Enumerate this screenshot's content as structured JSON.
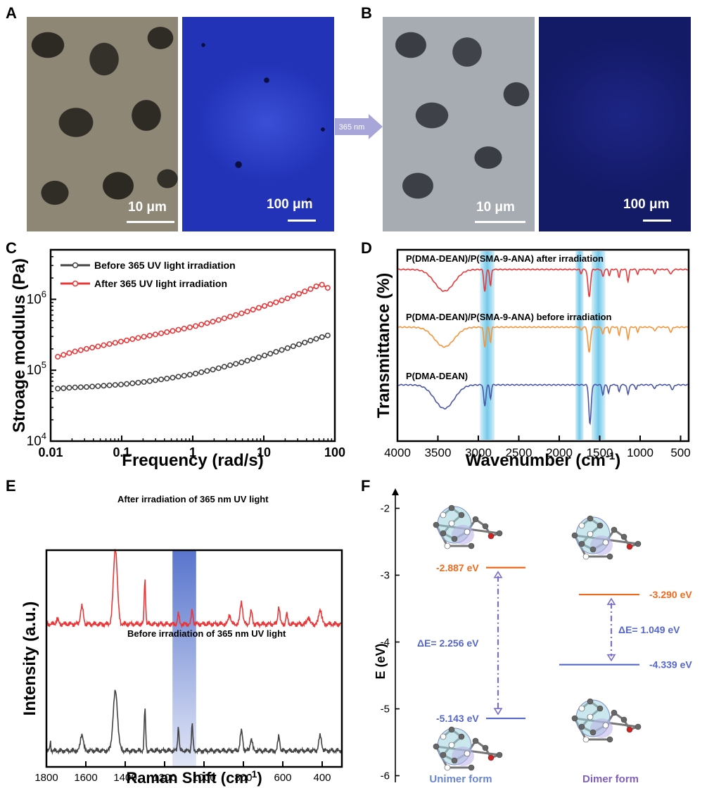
{
  "panel_labels": {
    "a": "A",
    "b": "B",
    "c": "C",
    "d": "D",
    "e": "E",
    "f": "F"
  },
  "colors": {
    "red": "#e8383a",
    "black": "#444444",
    "orange": "#f5943a",
    "navy": "#4a56a6",
    "highlight": "#5bc0e6",
    "energy_orange": "#f06a1e",
    "energy_blue": "#5566cc",
    "arrow_purple": "#7a6fc8"
  },
  "micrographs": {
    "a_sem_scale": "10 μm",
    "a_fluor_scale": "100 μm",
    "b_sem_scale": "10 μm",
    "b_fluor_scale": "100 μm",
    "arrow_label": "365 nm"
  },
  "chart_c": {
    "type": "scatter-line",
    "xlabel": "Frequency (rad/s)",
    "ylabel": "Stroage modulus (Pa)",
    "x_scale": "log",
    "y_scale": "log",
    "xlim": [
      0.01,
      100
    ],
    "ylim": [
      10000,
      5000000
    ],
    "x_ticks": [
      "0.01",
      "0.1",
      "1",
      "10",
      "100"
    ],
    "y_ticks": [
      {
        "base": "10",
        "exp": "4"
      },
      {
        "base": "10",
        "exp": "5"
      },
      {
        "base": "10",
        "exp": "6"
      }
    ],
    "legend_position": "top-left",
    "series": [
      {
        "name": "Before 365 UV light irradiation",
        "color": "#444444",
        "x": [
          0.0126,
          0.02,
          0.0316,
          0.05,
          0.1,
          0.2,
          0.5,
          1,
          2,
          5,
          10,
          20,
          50,
          79.4
        ],
        "y": [
          55000,
          57000,
          58000,
          60000,
          63000,
          68000,
          78000,
          88000,
          103000,
          130000,
          160000,
          200000,
          270000,
          310000
        ]
      },
      {
        "name": "After 365 UV light irradiation",
        "color": "#e8383a",
        "x": [
          0.0126,
          0.02,
          0.0316,
          0.05,
          0.1,
          0.2,
          0.5,
          1,
          2,
          5,
          10,
          20,
          50,
          63.1,
          79.4
        ],
        "y": [
          155000,
          180000,
          200000,
          220000,
          255000,
          295000,
          355000,
          410000,
          490000,
          640000,
          800000,
          1000000,
          1450000,
          1650000,
          1450000
        ]
      }
    ]
  },
  "chart_d": {
    "type": "line",
    "xlabel": "Wavenumber (cm",
    "xlabel_sup": "-1",
    "xlabel_close": ")",
    "ylabel": "Transmittance (%)",
    "xlim": [
      4000,
      400
    ],
    "x_ticks": [
      "4000",
      "3500",
      "3000",
      "2500",
      "2000",
      "1500",
      "1000",
      "500"
    ],
    "highlight_bands": [
      [
        2980,
        2800
      ],
      [
        1800,
        1700
      ],
      [
        1600,
        1430
      ]
    ],
    "series": [
      {
        "name": "P(DMA-DEAN)/P(SMA-9-ANA) after irradiation",
        "color": "#e8383a",
        "offset": 2.0
      },
      {
        "name": "P(DMA-DEAN)/P(SMA-9-ANA) before irradiation",
        "color": "#f5943a",
        "offset": 1.0
      },
      {
        "name": "P(DMA-DEAN)",
        "color": "#4a56a6",
        "offset": 0.0
      }
    ]
  },
  "chart_e": {
    "type": "line",
    "xlabel": "Raman Shift (cm",
    "xlabel_sup": "-1",
    "xlabel_close": ")",
    "ylabel": "Intensity (a.u.)",
    "xlim": [
      1800,
      300
    ],
    "x_ticks": [
      "1800",
      "1600",
      "1400",
      "1200",
      "1000",
      "800",
      "600",
      "400"
    ],
    "highlight_band": [
      1160,
      1040
    ],
    "series": [
      {
        "name": "After irradiation of 365 nm UV light",
        "color": "#e8383a"
      },
      {
        "name": "Before irradiation of 365 nm UV light",
        "color": "#444444"
      }
    ]
  },
  "chart_f": {
    "type": "energy-diagram",
    "ylabel": "E (eV)",
    "ylim": [
      -6.1,
      -1.7
    ],
    "y_ticks": [
      "-2",
      "-3",
      "-4",
      "-5",
      "-6"
    ],
    "levels": [
      {
        "form": "unimer",
        "value": -2.887,
        "label": "-2.887 eV",
        "kind": "LUMO"
      },
      {
        "form": "unimer",
        "value": -5.143,
        "label": "-5.143 eV",
        "kind": "HOMO"
      },
      {
        "form": "dimer",
        "value": -3.29,
        "label": "-3.290 eV",
        "kind": "LUMO"
      },
      {
        "form": "dimer",
        "value": -4.339,
        "label": "-4.339 eV",
        "kind": "HOMO"
      }
    ],
    "gaps": [
      {
        "form": "unimer",
        "label": "ΔE= 2.256 eV"
      },
      {
        "form": "dimer",
        "label": "ΔE= 1.049 eV"
      }
    ],
    "form_labels": {
      "unimer": "Unimer form",
      "dimer": "Dimer form"
    }
  }
}
